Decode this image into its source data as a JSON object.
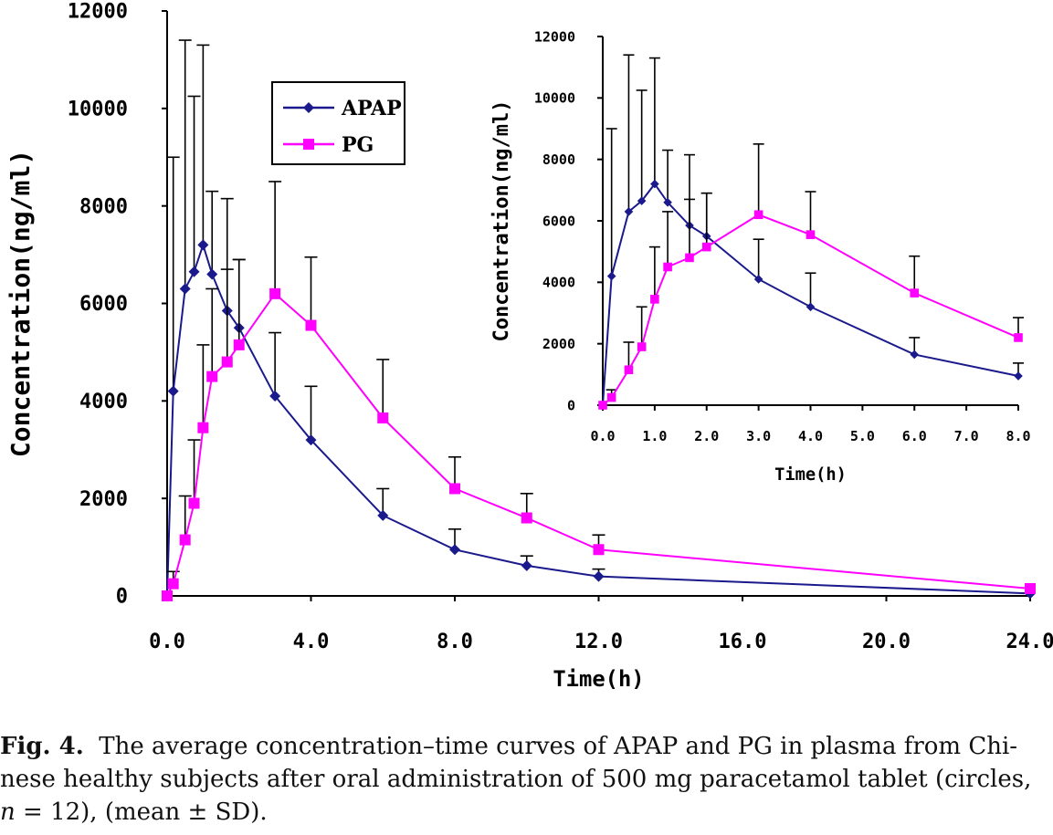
{
  "chart_data": [
    {
      "type": "line",
      "panel": "main",
      "xlabel": "Time(h)",
      "ylabel": "Concentration(ng/ml)",
      "xlim": [
        0,
        24
      ],
      "ylim": [
        0,
        12000
      ],
      "x_ticks": [
        "0.0",
        "4.0",
        "8.0",
        "12.0",
        "16.0",
        "20.0",
        "24.0"
      ],
      "y_ticks": [
        "0",
        "2000",
        "4000",
        "6000",
        "8000",
        "10000",
        "12000"
      ],
      "legend_position": "top-center",
      "series": [
        {
          "name": "APAP",
          "color": "#1a1a8c",
          "marker": "diamond",
          "points": [
            {
              "x": 0.0,
              "y": 0,
              "sd": 0
            },
            {
              "x": 0.17,
              "y": 4200,
              "sd": 4800
            },
            {
              "x": 0.5,
              "y": 6300,
              "sd": 5100
            },
            {
              "x": 0.75,
              "y": 6650,
              "sd": 3600
            },
            {
              "x": 1.0,
              "y": 7200,
              "sd": 4100
            },
            {
              "x": 1.25,
              "y": 6600,
              "sd": 1700
            },
            {
              "x": 1.67,
              "y": 5850,
              "sd": 2300
            },
            {
              "x": 2.0,
              "y": 5500,
              "sd": 1400
            },
            {
              "x": 3.0,
              "y": 4100,
              "sd": 1300
            },
            {
              "x": 4.0,
              "y": 3200,
              "sd": 1100
            },
            {
              "x": 6.0,
              "y": 1650,
              "sd": 550
            },
            {
              "x": 8.0,
              "y": 950,
              "sd": 420
            },
            {
              "x": 10.0,
              "y": 620,
              "sd": 200
            },
            {
              "x": 12.0,
              "y": 400,
              "sd": 150
            },
            {
              "x": 24.0,
              "y": 50,
              "sd": 0
            }
          ]
        },
        {
          "name": "PG",
          "color": "#ff00ff",
          "marker": "square",
          "points": [
            {
              "x": 0.0,
              "y": 0,
              "sd": 0
            },
            {
              "x": 0.17,
              "y": 250,
              "sd": 250
            },
            {
              "x": 0.5,
              "y": 1150,
              "sd": 900
            },
            {
              "x": 0.75,
              "y": 1900,
              "sd": 1300
            },
            {
              "x": 1.0,
              "y": 3450,
              "sd": 1700
            },
            {
              "x": 1.25,
              "y": 4500,
              "sd": 1800
            },
            {
              "x": 1.67,
              "y": 4800,
              "sd": 1900
            },
            {
              "x": 2.0,
              "y": 5150,
              "sd": 1750
            },
            {
              "x": 3.0,
              "y": 6200,
              "sd": 2300
            },
            {
              "x": 4.0,
              "y": 5550,
              "sd": 1400
            },
            {
              "x": 6.0,
              "y": 3650,
              "sd": 1200
            },
            {
              "x": 8.0,
              "y": 2200,
              "sd": 650
            },
            {
              "x": 10.0,
              "y": 1600,
              "sd": 500
            },
            {
              "x": 12.0,
              "y": 950,
              "sd": 300
            },
            {
              "x": 24.0,
              "y": 150,
              "sd": 0
            }
          ]
        }
      ]
    },
    {
      "type": "line",
      "panel": "inset",
      "xlabel": "Time(h)",
      "ylabel": "Concentration(ng/ml)",
      "xlim": [
        0,
        8
      ],
      "ylim": [
        0,
        12000
      ],
      "x_ticks": [
        "0.0",
        "1.0",
        "2.0",
        "3.0",
        "4.0",
        "5.0",
        "6.0",
        "7.0",
        "8.0"
      ],
      "y_ticks": [
        "0",
        "2000",
        "4000",
        "6000",
        "8000",
        "10000",
        "12000"
      ],
      "series_source": "same as main panel, restricted to 0–8 h"
    }
  ],
  "caption": {
    "label": "Fig. 4.",
    "text_line1": "The average concentration–time curves of APAP and PG in plasma from Chi-",
    "text_line2": "nese healthy subjects after oral administration of 500 mg paracetamol tablet (circles,",
    "text_line3_n": "n",
    "text_line3_rest": " = 12), (mean ± SD)."
  }
}
